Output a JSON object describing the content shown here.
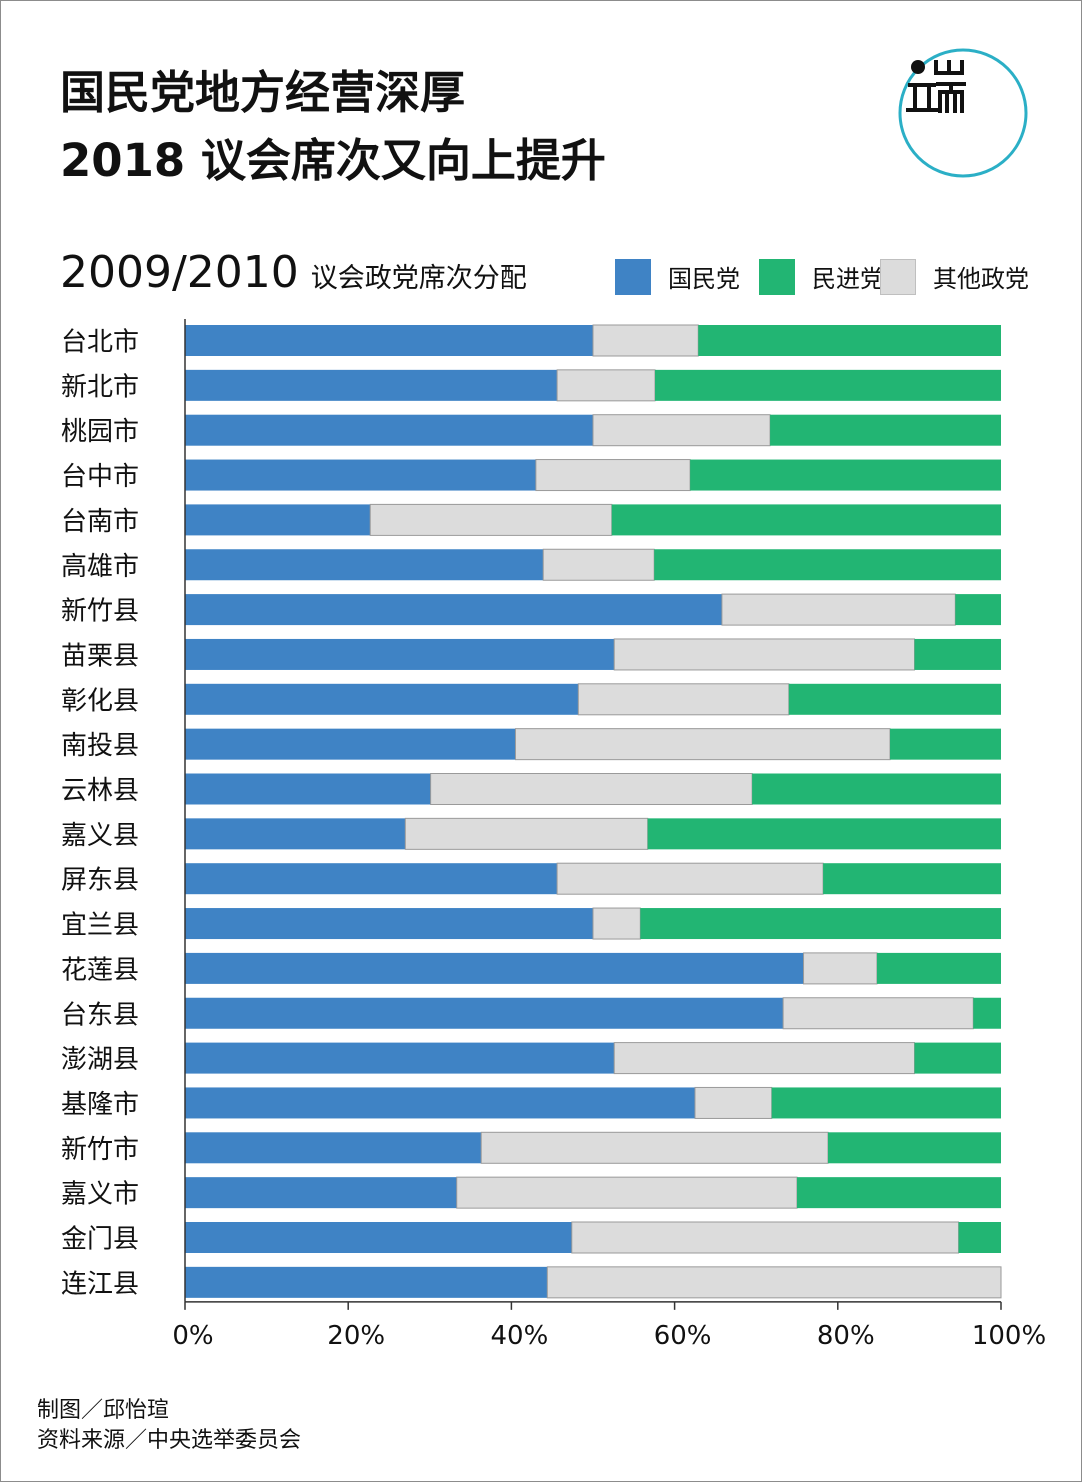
{
  "title": {
    "line1": "国民党地方经营深厚",
    "line2": "2018 议会席次又向上提升"
  },
  "subtitle": {
    "years": "2009/2010",
    "desc": "议会政党席次分配"
  },
  "logo": {
    "icon": "端-logo-icon",
    "ring_color": "#2bafc6"
  },
  "colors": {
    "kmt": "#3f83c5",
    "dpp": "#22b573",
    "other": "#dcdcdc"
  },
  "chart_data": {
    "type": "bar",
    "orientation": "horizontal",
    "stacked": true,
    "categories": [
      "台北市",
      "新北市",
      "桃园市",
      "台中市",
      "台南市",
      "高雄市",
      "新竹县",
      "苗栗县",
      "彰化县",
      "南投县",
      "云林县",
      "嘉义县",
      "屏东县",
      "宜兰县",
      "花莲县",
      "台东县",
      "澎湖县",
      "基隆市",
      "新竹市",
      "嘉义市",
      "金门县",
      "连江县"
    ],
    "series": [
      {
        "name": "国民党",
        "values": [
          50.0,
          45.6,
          50.0,
          43.0,
          22.7,
          43.9,
          65.8,
          52.6,
          48.2,
          40.5,
          30.1,
          27.0,
          45.6,
          50.0,
          75.8,
          73.3,
          52.6,
          62.5,
          36.3,
          33.3,
          47.4,
          44.4
        ]
      },
      {
        "name": "其他政党",
        "values": [
          12.9,
          12.0,
          21.7,
          18.9,
          29.6,
          13.6,
          28.6,
          36.8,
          25.8,
          45.9,
          39.4,
          29.7,
          32.6,
          5.8,
          9.0,
          23.3,
          36.8,
          9.4,
          42.5,
          41.7,
          47.4,
          55.6
        ]
      },
      {
        "name": "民进党",
        "values": [
          37.1,
          42.4,
          28.3,
          38.1,
          47.7,
          42.5,
          5.6,
          10.6,
          26.0,
          13.6,
          30.5,
          43.3,
          21.8,
          44.2,
          15.2,
          3.4,
          10.6,
          28.1,
          21.2,
          25.0,
          5.2,
          0.0
        ]
      }
    ],
    "xlim": [
      0,
      100
    ],
    "xticks": [
      "0%",
      "20%",
      "40%",
      "60%",
      "80%",
      "100%"
    ],
    "grid": false,
    "legend_position": "top-right"
  },
  "legend": [
    {
      "label": "国民党"
    },
    {
      "label": "民进党"
    },
    {
      "label": "其他政党"
    }
  ],
  "footer": {
    "author": "制图／邱怡瑄",
    "source": "资料来源／中央选举委员会"
  }
}
